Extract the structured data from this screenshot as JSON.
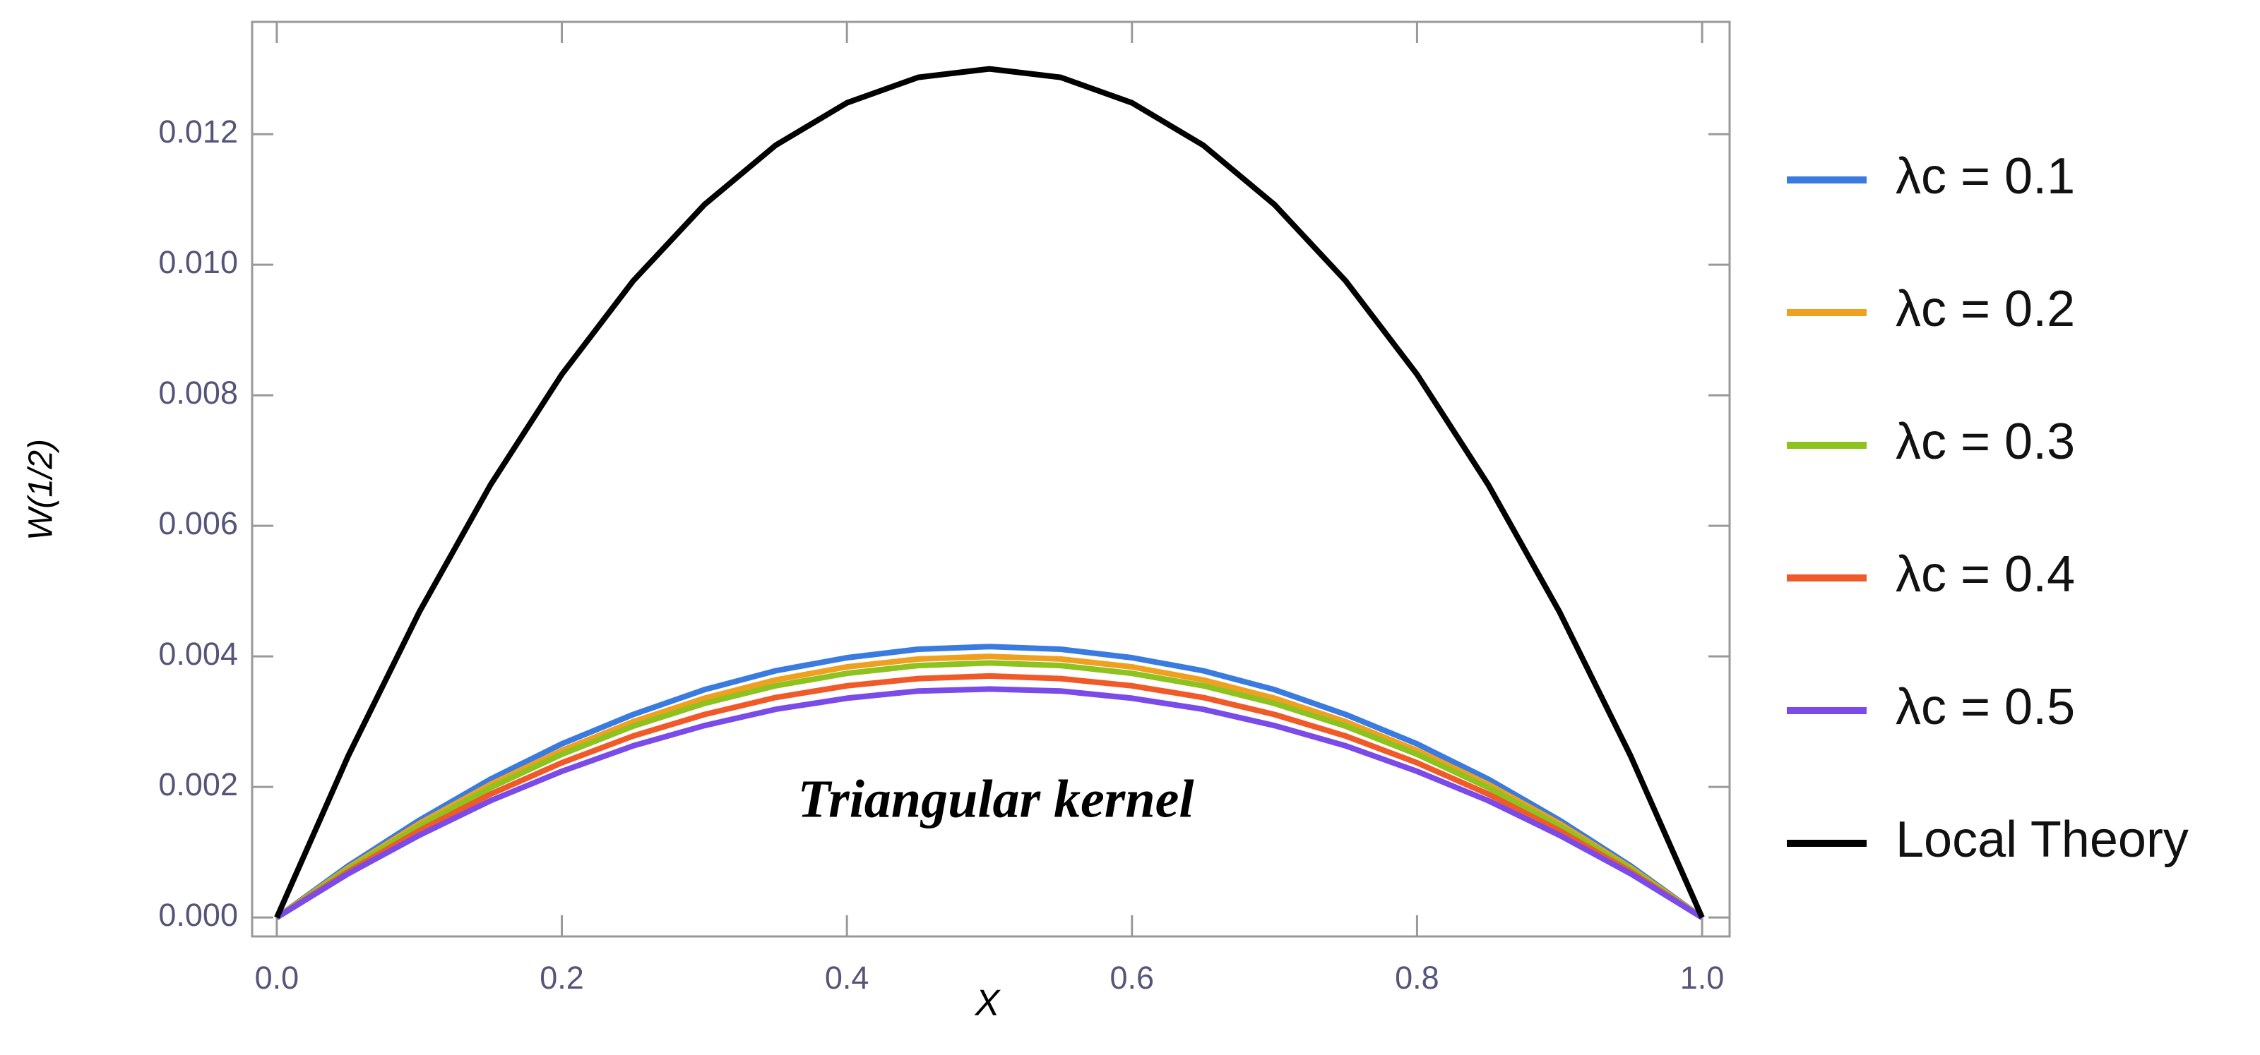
{
  "chart_data": {
    "type": "line",
    "x_label": "X",
    "y_label": "W(1/2)",
    "annotation": "Triangular kernel",
    "x": [
      0,
      0.05,
      0.1,
      0.15,
      0.2,
      0.25,
      0.3,
      0.35,
      0.4,
      0.45,
      0.5,
      0.55,
      0.6,
      0.65,
      0.7,
      0.75,
      0.8,
      0.85,
      0.9,
      0.95,
      1
    ],
    "series": [
      {
        "name": "λc = 0.1",
        "color": "#3a7be0",
        "values": [
          0,
          0.00079,
          0.00149,
          0.00212,
          0.00266,
          0.00311,
          0.00349,
          0.00378,
          0.00398,
          0.00411,
          0.00415,
          0.00411,
          0.00398,
          0.00378,
          0.00349,
          0.00311,
          0.00266,
          0.00212,
          0.00149,
          0.00079,
          0
        ]
      },
      {
        "name": "λc = 0.2",
        "color": "#f0a020",
        "values": [
          0,
          0.00076,
          0.00144,
          0.00204,
          0.00256,
          0.003,
          0.00336,
          0.00364,
          0.00384,
          0.00396,
          0.004,
          0.00396,
          0.00384,
          0.00364,
          0.00336,
          0.003,
          0.00256,
          0.00204,
          0.00144,
          0.00076,
          0
        ]
      },
      {
        "name": "λc = 0.3",
        "color": "#8dc21f",
        "values": [
          0,
          0.00074,
          0.0014,
          0.00199,
          0.0025,
          0.00293,
          0.00328,
          0.00355,
          0.00374,
          0.00386,
          0.0039,
          0.00386,
          0.00374,
          0.00355,
          0.00328,
          0.00293,
          0.0025,
          0.00199,
          0.0014,
          0.00074,
          0
        ]
      },
      {
        "name": "λc = 0.4",
        "color": "#f05a28",
        "values": [
          0,
          0.0007,
          0.00133,
          0.00189,
          0.00237,
          0.00278,
          0.00311,
          0.00337,
          0.00355,
          0.00366,
          0.0037,
          0.00366,
          0.00355,
          0.00337,
          0.00311,
          0.00278,
          0.00237,
          0.00189,
          0.00133,
          0.0007,
          0
        ]
      },
      {
        "name": "λc = 0.5",
        "color": "#7a4be8",
        "values": [
          0,
          0.00067,
          0.00126,
          0.00179,
          0.00224,
          0.00263,
          0.00294,
          0.00319,
          0.00336,
          0.00347,
          0.0035,
          0.00347,
          0.00336,
          0.00319,
          0.00294,
          0.00263,
          0.00224,
          0.00179,
          0.00126,
          0.00067,
          0
        ]
      },
      {
        "name": "Local Theory",
        "color": "#000000",
        "values": [
          0,
          0.00247,
          0.00468,
          0.00663,
          0.00832,
          0.00975,
          0.01092,
          0.01183,
          0.01248,
          0.01287,
          0.013,
          0.01287,
          0.01248,
          0.01183,
          0.01092,
          0.00975,
          0.00832,
          0.00663,
          0.00468,
          0.00247,
          0
        ]
      }
    ],
    "xlim": [
      -0.0173,
      1.0193
    ],
    "ylim": [
      -0.00029,
      0.01372
    ],
    "xticks": [
      {
        "value": 0,
        "label": "0.0"
      },
      0.2,
      0.4,
      0.6,
      0.8,
      {
        "value": 1,
        "label": "1.0"
      }
    ],
    "yticks": [
      {
        "value": 0,
        "label": "0.000"
      },
      0.002,
      0.004,
      0.006,
      0.008,
      {
        "value": 0.01,
        "label": "0.010"
      },
      0.012
    ],
    "legend": "right"
  }
}
